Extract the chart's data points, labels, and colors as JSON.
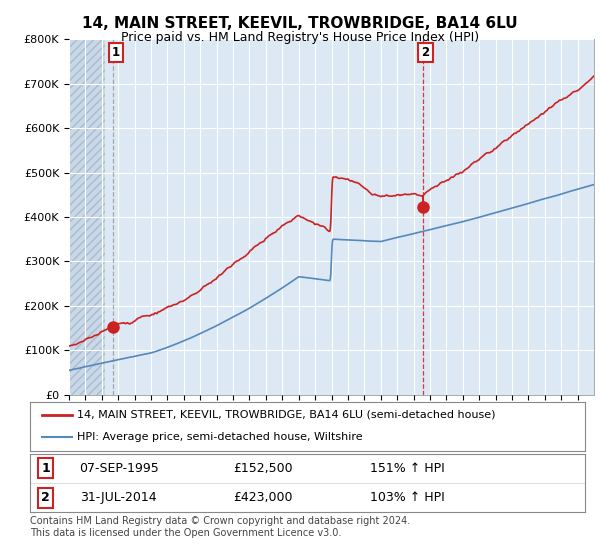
{
  "title": "14, MAIN STREET, KEEVIL, TROWBRIDGE, BA14 6LU",
  "subtitle": "Price paid vs. HM Land Registry's House Price Index (HPI)",
  "ylabel_ticks": [
    "£0",
    "£100K",
    "£200K",
    "£300K",
    "£400K",
    "£500K",
    "£600K",
    "£700K",
    "£800K"
  ],
  "ylim": [
    0,
    800000
  ],
  "xlim_start": 1993.0,
  "xlim_end": 2025.0,
  "sale1_x": 1995.69,
  "sale1_y": 152500,
  "sale2_x": 2014.58,
  "sale2_y": 423000,
  "sale1_date": "07-SEP-1995",
  "sale1_price": "£152,500",
  "sale1_hpi": "151% ↑ HPI",
  "sale2_date": "31-JUL-2014",
  "sale2_price": "£423,000",
  "sale2_hpi": "103% ↑ HPI",
  "line1_color": "#cc2222",
  "line2_color": "#5588bb",
  "vline1_color": "#999999",
  "vline2_color": "#dd2222",
  "point_color": "#cc2222",
  "legend1": "14, MAIN STREET, KEEVIL, TROWBRIDGE, BA14 6LU (semi-detached house)",
  "legend2": "HPI: Average price, semi-detached house, Wiltshire",
  "footer": "Contains HM Land Registry data © Crown copyright and database right 2024.\nThis data is licensed under the Open Government Licence v3.0.",
  "bg_color": "#ffffff",
  "plot_bg_color": "#dce9f5",
  "title_fontsize": 11,
  "subtitle_fontsize": 9,
  "tick_fontsize": 8,
  "footer_fontsize": 7
}
